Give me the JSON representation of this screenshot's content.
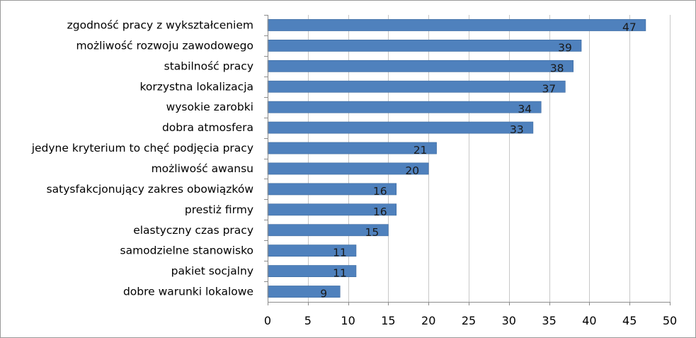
{
  "chart_data": {
    "type": "bar",
    "orientation": "horizontal",
    "categories": [
      "zgodność pracy z wykształceniem",
      "możliwość rozwoju zawodowego",
      "stabilność pracy",
      "korzystna lokalizacja",
      "wysokie zarobki",
      "dobra atmosfera ",
      "jedyne kryterium to chęć podjęcia pracy",
      "możliwość awansu ",
      "satysfakcjonujący zakres obowiązków",
      "prestiż firmy",
      "elastyczny czas pracy",
      "samodzielne stanowisko",
      "pakiet socjalny",
      "dobre warunki lokalowe "
    ],
    "values": [
      47,
      39,
      38,
      37,
      34,
      33,
      21,
      20,
      16,
      16,
      15,
      11,
      11,
      9
    ],
    "xlim": [
      0,
      50
    ],
    "xticks": [
      0,
      5,
      10,
      15,
      20,
      25,
      30,
      35,
      40,
      45,
      50
    ],
    "grid": true,
    "bar_color": "#4f81bd",
    "title": "",
    "xlabel": "",
    "ylabel": ""
  }
}
